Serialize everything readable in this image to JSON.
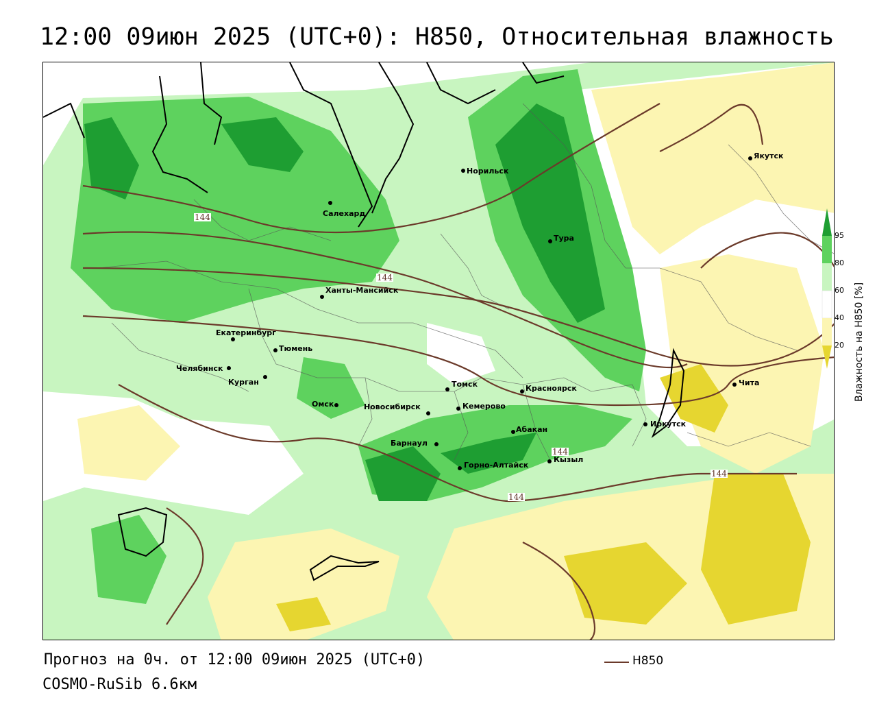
{
  "title": "12:00 09июн 2025 (UTC+0): H850, Относительная влажность",
  "footer": {
    "forecast": "Прогноз на 0ч. от 12:00 09июн 2025 (UTC+0)",
    "model": "COSMO-RuSib 6.6км",
    "line_legend": "H850"
  },
  "colorbar": {
    "caption": "Влажность на H850 [%]",
    "ticks": [
      "95",
      "80",
      "60",
      "40",
      "20"
    ],
    "colors": {
      "95": "#1e9e32",
      "80": "#5ed25e",
      "60": "#c8f5c0",
      "40": "#ffffff",
      "20": "#fcf5b2",
      "0": "#e6d630"
    }
  },
  "contour_labels": [
    "144",
    "144",
    "144",
    "144",
    "144"
  ],
  "cities": [
    {
      "name": "Якутск"
    },
    {
      "name": "Норильск"
    },
    {
      "name": "Салехард"
    },
    {
      "name": "Тура"
    },
    {
      "name": "Ханты-Мансийск"
    },
    {
      "name": "Екатеринбург"
    },
    {
      "name": "Тюмень"
    },
    {
      "name": "Челябинск"
    },
    {
      "name": "Курган"
    },
    {
      "name": "Омск"
    },
    {
      "name": "Новосибирск"
    },
    {
      "name": "Томск"
    },
    {
      "name": "Кемерово"
    },
    {
      "name": "Красноярск"
    },
    {
      "name": "Барнаул"
    },
    {
      "name": "Абакан"
    },
    {
      "name": "Горно-Алтайск"
    },
    {
      "name": "Кызыл"
    },
    {
      "name": "Иркутск"
    },
    {
      "name": "Чита"
    }
  ]
}
